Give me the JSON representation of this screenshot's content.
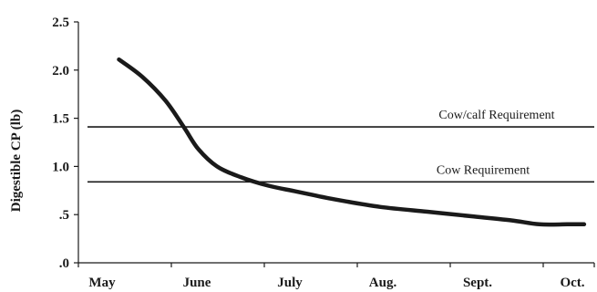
{
  "chart_data": {
    "type": "line",
    "title": "",
    "xlabel": "",
    "ylabel": "Digestible CP (lb)",
    "ylim": [
      0,
      2.5
    ],
    "yticks": [
      {
        "value": 0,
        "label": ".0"
      },
      {
        "value": 0.5,
        "label": ".5"
      },
      {
        "value": 1.0,
        "label": "1.0"
      },
      {
        "value": 1.5,
        "label": "1.5"
      },
      {
        "value": 2.0,
        "label": "2.0"
      },
      {
        "value": 2.5,
        "label": "2.5"
      }
    ],
    "xlim": [
      0,
      5.5
    ],
    "xticks": [
      {
        "value": 0,
        "label": "May"
      },
      {
        "value": 1,
        "label": "June"
      },
      {
        "value": 2,
        "label": "July"
      },
      {
        "value": 3,
        "label": "Aug."
      },
      {
        "value": 4,
        "label": "Sept."
      },
      {
        "value": 5,
        "label": "Oct."
      }
    ],
    "grid": false,
    "series": [
      {
        "x": [
          0.2,
          0.45,
          0.7,
          0.9,
          1.05,
          1.25,
          1.5,
          1.8,
          2.1,
          2.5,
          3.0,
          3.5,
          4.0,
          4.4,
          4.7,
          5.0,
          5.18
        ],
        "y": [
          2.11,
          1.93,
          1.68,
          1.4,
          1.18,
          1.0,
          0.89,
          0.8,
          0.74,
          0.66,
          0.58,
          0.53,
          0.48,
          0.44,
          0.4,
          0.4,
          0.4
        ]
      }
    ],
    "reference_lines": [
      {
        "y": 1.41,
        "label": "Cow/calf Requirement"
      },
      {
        "y": 0.84,
        "label": "Cow Requirement"
      }
    ]
  }
}
